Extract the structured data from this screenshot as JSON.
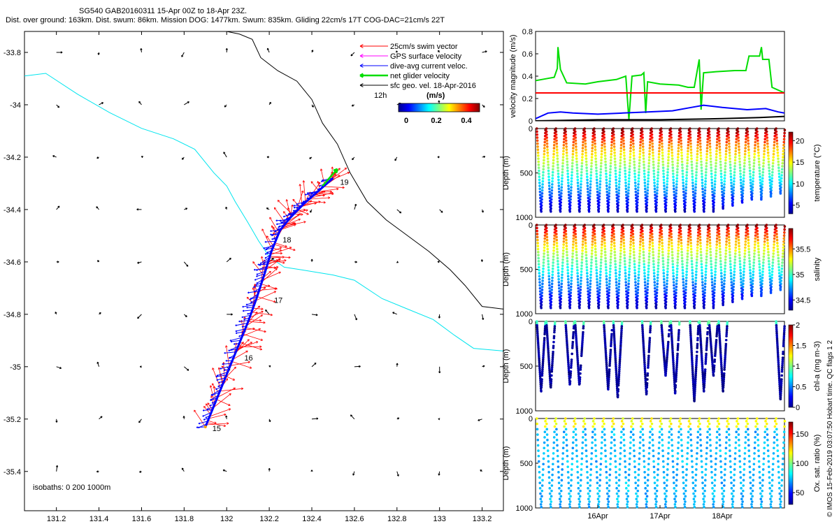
{
  "header": {
    "line1": "SG540 GAB20160311 15-Apr 00Z to 18-Apr 23Z.",
    "line2": "Dist. over ground: 163km. Dist. swum: 86km. Mission DOG: 1477km. Swum: 835km. Gliding 22cm/s 17T COG-DAC=21cm/s 22T"
  },
  "colors": {
    "swim": "#ff0000",
    "gps": "#ff00ff",
    "dac": "#0000ff",
    "net": "#00dd00",
    "sfc": "#000000",
    "iso200": "#00e5ee"
  },
  "chart_data": [
    {
      "type": "map",
      "xlim": [
        131.05,
        133.3
      ],
      "ylim": [
        -35.55,
        -33.72
      ],
      "x_ticks": [
        "131.2",
        "131.4",
        "131.6",
        "131.8",
        "132",
        "132.2",
        "132.4",
        "132.6",
        "132.8",
        "133",
        "133.2"
      ],
      "y_ticks": [
        "-33.8",
        "-34",
        "-34.2",
        "-34.4",
        "-34.6",
        "-34.8",
        "-35",
        "-35.2",
        "-35.4"
      ],
      "legend": {
        "entries": [
          "25cm/s swim vector",
          "GPS surface velocity",
          "dive-avg current veloc.",
          "net glider velocity",
          "sfc geo. vel. 18-Apr-2016"
        ],
        "time_label": "12h",
        "unit_label": "(m/s)",
        "colorbar_ticks": [
          "0",
          "0.2",
          "0.4"
        ],
        "placement": "top-right"
      },
      "isobath_label": "isobaths: 0   200  1000m",
      "track": [
        [
          131.9,
          -35.23
        ],
        [
          131.95,
          -35.13
        ],
        [
          132.0,
          -35.03
        ],
        [
          132.05,
          -34.93
        ],
        [
          132.1,
          -34.83
        ],
        [
          132.14,
          -34.74
        ],
        [
          132.18,
          -34.64
        ],
        [
          132.21,
          -34.56
        ],
        [
          132.25,
          -34.48
        ],
        [
          132.3,
          -34.43
        ],
        [
          132.36,
          -34.38
        ],
        [
          132.43,
          -34.33
        ],
        [
          132.5,
          -34.28
        ]
      ],
      "day_labels": [
        {
          "text": "15",
          "lon": 131.9,
          "lat": -35.23
        },
        {
          "text": "16",
          "lon": 132.05,
          "lat": -34.96
        },
        {
          "text": "17",
          "lon": 132.19,
          "lat": -34.74
        },
        {
          "text": "18",
          "lon": 132.23,
          "lat": -34.51
        },
        {
          "text": "19",
          "lon": 132.5,
          "lat": -34.29
        }
      ],
      "isobath_200": [
        [
          131.05,
          -33.89
        ],
        [
          131.15,
          -33.88
        ],
        [
          131.3,
          -33.96
        ],
        [
          131.45,
          -34.03
        ],
        [
          131.6,
          -34.09
        ],
        [
          131.75,
          -34.13
        ],
        [
          131.85,
          -34.17
        ],
        [
          131.94,
          -34.26
        ],
        [
          132.0,
          -34.31
        ],
        [
          132.04,
          -34.37
        ],
        [
          132.1,
          -34.45
        ],
        [
          132.15,
          -34.52
        ],
        [
          132.2,
          -34.58
        ],
        [
          132.27,
          -34.62
        ],
        [
          132.35,
          -34.63
        ],
        [
          132.5,
          -34.65
        ],
        [
          132.6,
          -34.67
        ],
        [
          132.73,
          -34.74
        ],
        [
          132.85,
          -34.78
        ],
        [
          132.97,
          -34.82
        ],
        [
          133.07,
          -34.88
        ],
        [
          133.16,
          -34.93
        ],
        [
          133.3,
          -34.94
        ]
      ],
      "isobath_1000": [
        [
          132.0,
          -33.72
        ],
        [
          132.06,
          -33.73
        ],
        [
          132.12,
          -33.75
        ],
        [
          132.16,
          -33.82
        ],
        [
          132.24,
          -33.87
        ],
        [
          132.33,
          -33.91
        ],
        [
          132.4,
          -33.98
        ],
        [
          132.45,
          -34.07
        ],
        [
          132.52,
          -34.15
        ],
        [
          132.58,
          -34.26
        ],
        [
          132.66,
          -34.37
        ],
        [
          132.75,
          -34.44
        ],
        [
          132.85,
          -34.5
        ],
        [
          132.95,
          -34.56
        ],
        [
          133.05,
          -34.63
        ],
        [
          133.12,
          -34.69
        ],
        [
          133.2,
          -34.77
        ],
        [
          133.3,
          -34.78
        ]
      ],
      "current_grid": {
        "lons": [
          131.2,
          131.4,
          131.6,
          131.8,
          132.0,
          132.2,
          132.4,
          132.6,
          132.8,
          133.0,
          133.2
        ],
        "lats": [
          -33.8,
          -34.0,
          -34.2,
          -34.4,
          -34.6,
          -34.8,
          -35.0,
          -35.2,
          -35.4
        ]
      }
    },
    {
      "type": "line",
      "ylabel": "velocity magnitude (m/s)",
      "ylim": [
        0,
        0.8
      ],
      "y_ticks": [
        "0",
        "0.2",
        "0.4",
        "0.6",
        "0.8"
      ],
      "x_range_days": [
        15.0,
        19.0
      ],
      "series": [
        {
          "color": "#00dd00",
          "points": [
            [
              15.0,
              0.36
            ],
            [
              15.1,
              0.37
            ],
            [
              15.2,
              0.38
            ],
            [
              15.3,
              0.39
            ],
            [
              15.35,
              0.47
            ],
            [
              15.36,
              0.66
            ],
            [
              15.4,
              0.46
            ],
            [
              15.5,
              0.34
            ],
            [
              15.8,
              0.33
            ],
            [
              16.0,
              0.35
            ],
            [
              16.3,
              0.37
            ],
            [
              16.45,
              0.4
            ],
            [
              16.5,
              0.01
            ],
            [
              16.55,
              0.4
            ],
            [
              16.7,
              0.41
            ],
            [
              16.74,
              0.43
            ],
            [
              16.77,
              0.07
            ],
            [
              16.8,
              0.35
            ],
            [
              17.0,
              0.33
            ],
            [
              17.3,
              0.32
            ],
            [
              17.45,
              0.3
            ],
            [
              17.55,
              0.3
            ],
            [
              17.63,
              0.55
            ],
            [
              17.66,
              0.1
            ],
            [
              17.7,
              0.43
            ],
            [
              17.9,
              0.44
            ],
            [
              18.2,
              0.45
            ],
            [
              18.38,
              0.45
            ],
            [
              18.43,
              0.58
            ],
            [
              18.6,
              0.58
            ],
            [
              18.63,
              0.66
            ],
            [
              18.65,
              0.55
            ],
            [
              18.75,
              0.55
            ],
            [
              18.8,
              0.3
            ],
            [
              19.0,
              0.25
            ]
          ]
        },
        {
          "color": "#ff0000",
          "points": [
            [
              15.0,
              0.25
            ],
            [
              19.0,
              0.25
            ]
          ]
        },
        {
          "color": "#0000ff",
          "points": [
            [
              15.0,
              0.02
            ],
            [
              15.2,
              0.07
            ],
            [
              15.4,
              0.08
            ],
            [
              15.6,
              0.07
            ],
            [
              16.0,
              0.06
            ],
            [
              16.4,
              0.07
            ],
            [
              16.8,
              0.08
            ],
            [
              17.2,
              0.09
            ],
            [
              17.5,
              0.12
            ],
            [
              17.7,
              0.14
            ],
            [
              18.0,
              0.12
            ],
            [
              18.4,
              0.1
            ],
            [
              18.7,
              0.11
            ],
            [
              18.9,
              0.08
            ],
            [
              19.0,
              0.07
            ]
          ]
        },
        {
          "color": "#000000",
          "points": [
            [
              15.0,
              0.0
            ],
            [
              16.0,
              0.01
            ],
            [
              17.0,
              0.01
            ],
            [
              18.0,
              0.02
            ],
            [
              18.6,
              0.03
            ],
            [
              19.0,
              0.04
            ]
          ]
        }
      ]
    },
    {
      "type": "scatter",
      "variable": "temperature",
      "ylabel": "Depth (m)",
      "yticks": [
        "0",
        "500",
        "1000"
      ],
      "colorbar_label": "temperature (°C)",
      "colorbar_ticks": [
        "5",
        "10",
        "15",
        "20"
      ],
      "clim": [
        3,
        22
      ],
      "profile_max_depth": 950
    },
    {
      "type": "scatter",
      "variable": "salinity",
      "ylabel": "Depth (m)",
      "yticks": [
        "0",
        "500",
        "1000"
      ],
      "colorbar_label": "salinity",
      "colorbar_ticks": [
        "34.5",
        "35",
        "35.5"
      ],
      "clim": [
        34.3,
        35.9
      ],
      "profile_max_depth": 950
    },
    {
      "type": "scatter",
      "variable": "chl-a",
      "ylabel": "Depth (m)",
      "yticks": [
        "0",
        "500",
        "1000"
      ],
      "colorbar_label": "chl-a (mg m-3)",
      "colorbar_ticks": [
        "0",
        "0.5",
        "1",
        "1.5",
        "2"
      ],
      "clim": [
        0,
        2
      ],
      "profile_max_depth": 980
    },
    {
      "type": "scatter",
      "variable": "oxygen",
      "ylabel": "Depth (m)",
      "yticks": [
        "0",
        "500",
        "1000"
      ],
      "colorbar_label": "Ox. sat. ratio (%)",
      "colorbar_ticks": [
        "50",
        "100",
        "150"
      ],
      "clim": [
        30,
        170
      ],
      "x_ticks": [
        "16Apr",
        "17Apr",
        "18Apr"
      ],
      "profile_max_depth": 1000
    }
  ],
  "side_note": "© IMOS 15-Feb-2019 03:07:50 Hobart time. QC flags 1  2"
}
